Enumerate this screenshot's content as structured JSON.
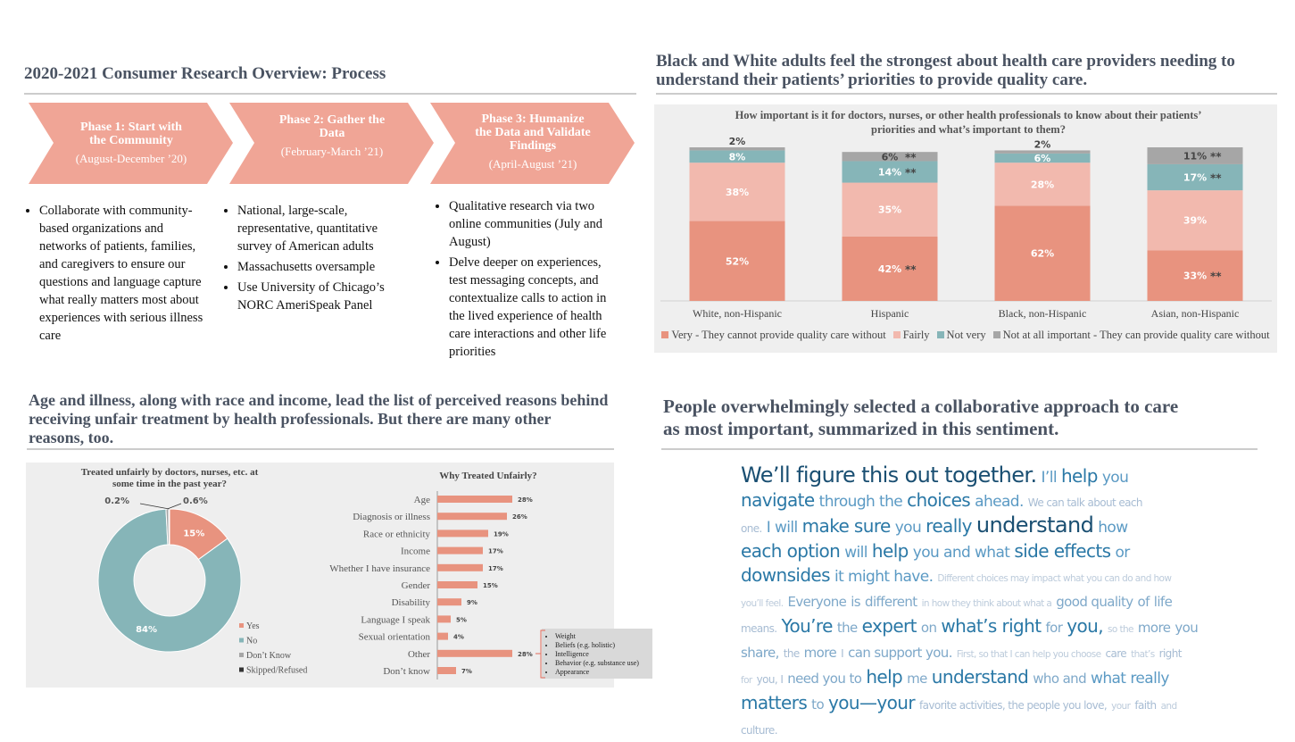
{
  "process": {
    "title": "2020-2021 Consumer Research Overview: Process",
    "phases": [
      {
        "title": "Phase 1: Start with the Community",
        "dates": "(August-December ’20)",
        "bullets": [
          "Collaborate with community-based organizations and networks of patients, families, and caregivers to ensure our questions and language capture what really matters most about experiences with serious illness care"
        ]
      },
      {
        "title": "Phase 2: Gather the Data",
        "dates": "(February-March ’21)",
        "bullets": [
          "National, large-scale, representative, quantitative survey of American adults",
          "Massachusetts oversample",
          "Use University of Chicago’s NORC AmeriSpeak Panel"
        ]
      },
      {
        "title": "Phase 3: Humanize the Data and Validate Findings",
        "dates": "(April-August ’21)",
        "bullets": [
          "Qualitative research via two online communities (July and August)",
          "Delve deeper on experiences, test messaging concepts, and contextualize calls to action in the lived experience of health care interactions and other life priorities"
        ]
      }
    ]
  },
  "chart_data": [
    {
      "type": "stacked_bar",
      "heading": "Black and White adults feel the strongest about health care providers needing to understand their patients’ priorities to provide quality care.",
      "title": "How important is it for doctors, nurses, or other health professionals to know about their patients’ priorities and what’s important to them?",
      "categories": [
        "White, non-Hispanic",
        "Hispanic",
        "Black, non-Hispanic",
        "Asian, non-Hispanic"
      ],
      "ylim": [
        0,
        100
      ],
      "series": [
        {
          "name": "Very - They cannot provide quality care without",
          "color": "#e8937f",
          "values": [
            52,
            42,
            62,
            33
          ],
          "value_labels": [
            "52%",
            "42%",
            "62%",
            "33%"
          ],
          "annotations": [
            null,
            "**",
            null,
            "**"
          ]
        },
        {
          "name": "Fairly",
          "color": "#f2b9ae",
          "values": [
            38,
            35,
            28,
            39
          ],
          "value_labels": [
            "38%",
            "35%",
            "28%",
            "39%"
          ],
          "annotations": [
            null,
            null,
            null,
            null
          ]
        },
        {
          "name": "Not very",
          "color": "#86b5b8",
          "values": [
            8,
            14,
            6,
            17
          ],
          "value_labels": [
            "8%",
            "14%",
            "6%",
            "17%"
          ],
          "annotations": [
            null,
            "**",
            null,
            "**"
          ]
        },
        {
          "name": "Not at all important - They can provide quality care without",
          "color": "#a6a6a6",
          "values": [
            2,
            6,
            2,
            11
          ],
          "value_labels": [
            "2%",
            "6%",
            "2%",
            "11%"
          ],
          "annotations": [
            null,
            "**",
            null,
            "**"
          ]
        }
      ]
    },
    {
      "type": "pie",
      "heading": "Age and illness, along with race and income, lead the list of perceived reasons behind receiving unfair treatment by health professionals. But there are many other reasons, too.",
      "title": "Treated unfairly by doctors, nurses, etc. at some time in the past year?",
      "categories": [
        "Yes",
        "No",
        "Don’t Know",
        "Skipped/Refused"
      ],
      "values": [
        15,
        84,
        0.6,
        0.2
      ],
      "value_labels": [
        "15%",
        "84%",
        "0.6%",
        "0.2%"
      ],
      "colors": [
        "#e8937f",
        "#86b5b8",
        "#a6a6a6",
        "#333333"
      ]
    },
    {
      "type": "hbar",
      "title": "Why Treated Unfairly?",
      "categories": [
        "Age",
        "Diagnosis or illness",
        "Race or ethnicity",
        "Income",
        "Whether I have insurance",
        "Gender",
        "Disability",
        "Language I speak",
        "Sexual orientation",
        "Other",
        "Don’t know"
      ],
      "values": [
        28,
        26,
        19,
        17,
        17,
        15,
        9,
        5,
        4,
        28,
        7
      ],
      "value_labels": [
        "28%",
        "26%",
        "19%",
        "17%",
        "17%",
        "15%",
        "9%",
        "5%",
        "4%",
        "28%",
        "7%"
      ],
      "color": "#e8937f",
      "xlim": [
        0,
        30
      ],
      "callout": [
        "Weight",
        "Beliefs (e.g. holistic)",
        "Intelligence",
        "Behavior (e.g. substance use)",
        "Appearance"
      ]
    }
  ],
  "word_cloud": {
    "heading": "People overwhelmingly selected a collaborative approach to care as most important, summarized in this sentiment.",
    "lines": [
      [
        "We’ll figure this out together.",
        "I’ll",
        "help",
        "you"
      ],
      [
        "navigate",
        "through the",
        "choices",
        "ahead.",
        "We can talk about each"
      ],
      [
        "one.",
        "I will",
        "make sure",
        "you",
        "really",
        "understand",
        "how"
      ],
      [
        "each option",
        "will",
        "help",
        "you and what",
        "side effects",
        "or"
      ],
      [
        "downsides",
        "it might have.",
        "Different choices may impact what you can do and how"
      ],
      [
        "you’ll feel.",
        "Everyone",
        "is",
        "different",
        "in how they think about what a",
        "good quality",
        "of",
        "life"
      ],
      [
        "means.",
        "You’re",
        "the",
        "expert",
        "on",
        "what’s right",
        "for",
        "you,",
        "so the",
        "more",
        "you"
      ],
      [
        "share,",
        "the",
        "more",
        "I",
        "can support you.",
        "First, so that I can help you choose",
        "care",
        "that’s",
        "right"
      ],
      [
        "for",
        "you, I",
        "need you to",
        "help",
        "me",
        "understand",
        "who and",
        "what",
        "really"
      ],
      [
        "matters",
        "to",
        "you—your",
        "favorite activities, the people you love,",
        "your",
        "faith",
        "and"
      ],
      [
        "culture."
      ]
    ]
  }
}
